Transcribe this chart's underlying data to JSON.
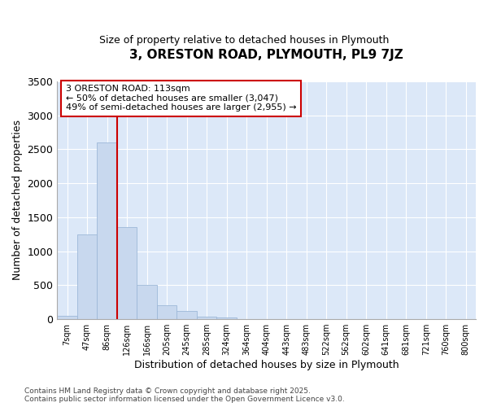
{
  "title": "3, ORESTON ROAD, PLYMOUTH, PL9 7JZ",
  "subtitle": "Size of property relative to detached houses in Plymouth",
  "xlabel": "Distribution of detached houses by size in Plymouth",
  "ylabel": "Number of detached properties",
  "categories": [
    "7sqm",
    "47sqm",
    "86sqm",
    "126sqm",
    "166sqm",
    "205sqm",
    "245sqm",
    "285sqm",
    "324sqm",
    "364sqm",
    "404sqm",
    "443sqm",
    "483sqm",
    "522sqm",
    "562sqm",
    "602sqm",
    "641sqm",
    "681sqm",
    "721sqm",
    "760sqm",
    "800sqm"
  ],
  "values": [
    50,
    1250,
    2600,
    1350,
    500,
    210,
    120,
    40,
    20,
    5,
    5,
    0,
    0,
    0,
    0,
    0,
    0,
    0,
    0,
    0,
    0
  ],
  "bar_color": "#c8d8ee",
  "bar_edge_color": "#9db8d8",
  "bg_color": "#dce8f8",
  "grid_color": "#ffffff",
  "vline_x": 2.5,
  "vline_color": "#cc0000",
  "annotation_line1": "3 ORESTON ROAD: 113sqm",
  "annotation_line2": "← 50% of detached houses are smaller (3,047)",
  "annotation_line3": "49% of semi-detached houses are larger (2,955) →",
  "annotation_box_color": "#ffffff",
  "annotation_box_edge": "#cc0000",
  "ylim": [
    0,
    3500
  ],
  "yticks": [
    0,
    500,
    1000,
    1500,
    2000,
    2500,
    3000,
    3500
  ],
  "fig_bg": "#ffffff",
  "footer1": "Contains HM Land Registry data © Crown copyright and database right 2025.",
  "footer2": "Contains public sector information licensed under the Open Government Licence v3.0."
}
